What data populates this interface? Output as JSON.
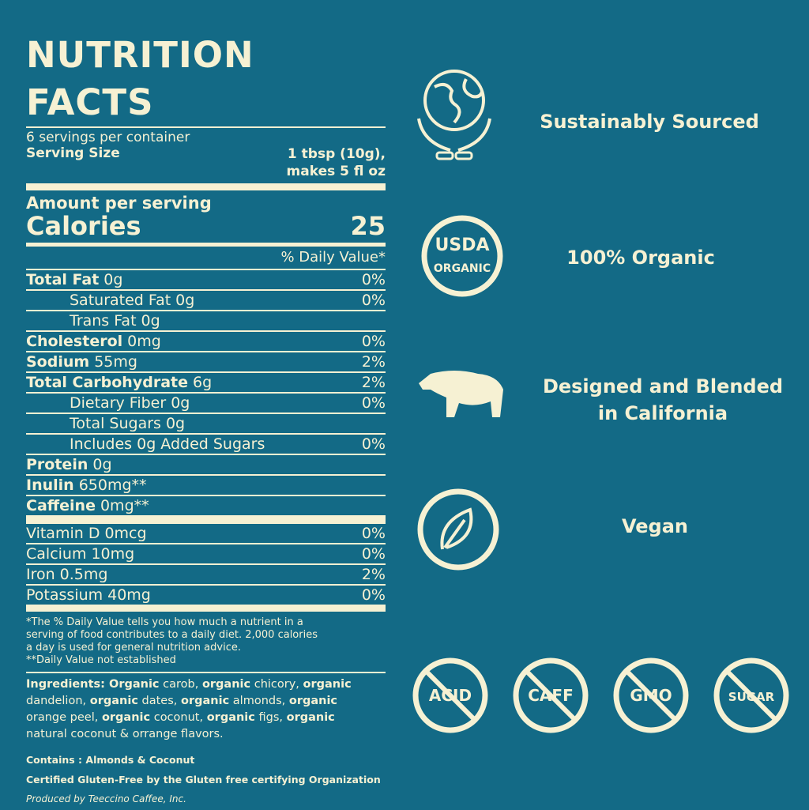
{
  "label": {
    "title": "NUTRITION FACTS",
    "servings": "6 servings per container",
    "serving_size_label": "Serving Size",
    "serving_size_value": [
      "1 tbsp (10g),",
      "makes 5 fl oz"
    ],
    "amount_per_serving": "Amount per serving",
    "calories_label": "Calories",
    "calories_value": "25",
    "dv_header": "% Daily Value*",
    "rows": [
      {
        "label": "Total Fat",
        "amount": "0g",
        "dv": "0%",
        "bold": true,
        "indent": 0
      },
      {
        "label": "Saturated Fat",
        "amount": "0g",
        "dv": "0%",
        "bold": false,
        "indent": 1
      },
      {
        "label": "Trans Fat",
        "amount": "0g",
        "dv": null,
        "bold": false,
        "indent": 1
      },
      {
        "label": "Cholesterol",
        "amount": "0mg",
        "dv": "0%",
        "bold": true,
        "indent": 0
      },
      {
        "label": "Sodium",
        "amount": "55mg",
        "dv": "2%",
        "bold": true,
        "indent": 0
      },
      {
        "label": "Total Carbohydrate",
        "amount": "6g",
        "dv": "2%",
        "bold": true,
        "indent": 0
      },
      {
        "label": "Dietary Fiber",
        "amount": "0g",
        "dv": "0%",
        "bold": false,
        "indent": 1
      },
      {
        "label": "Total Sugars",
        "amount": "0g",
        "dv": null,
        "bold": false,
        "indent": 1
      },
      {
        "label": "Includes 0g Added Sugars",
        "amount": null,
        "dv": "0%",
        "bold": false,
        "indent": 1
      },
      {
        "label": "Protein",
        "amount": "0g",
        "dv": null,
        "bold": true,
        "indent": 0
      },
      {
        "label": "Inulin",
        "amount": "650mg**",
        "dv": null,
        "bold": true,
        "indent": 0
      },
      {
        "label": "Caffeine",
        "amount": "0mg**",
        "dv": null,
        "bold": true,
        "indent": 0
      }
    ],
    "vitamins": [
      {
        "label": "Vitamin D",
        "amount": "0mcg",
        "dv": "0%"
      },
      {
        "label": "Calcium",
        "amount": "10mg",
        "dv": "0%"
      },
      {
        "label": "Iron",
        "amount": "0.5mg",
        "dv": "2%"
      },
      {
        "label": "Potassium",
        "amount": "40mg",
        "dv": "0%"
      }
    ],
    "footnote": [
      "*The % Daily Value tells you how much a nutrient in a",
      "serving of food contributes to a daily diet. 2,000 calories",
      "a day is used for general nutrition advice.",
      "**Daily Value not established"
    ],
    "ingredients": [
      {
        "text": "Ingredients: Organic",
        "bold": true
      },
      {
        "text": " carob, ",
        "bold": false
      },
      {
        "text": "organic",
        "bold": true
      },
      {
        "text": " chicory, ",
        "bold": false
      },
      {
        "text": "organic",
        "bold": true
      },
      {
        "text": " dandelion, ",
        "bold": false
      },
      {
        "text": "organic",
        "bold": true
      },
      {
        "text": " dates, ",
        "bold": false
      },
      {
        "text": "organic",
        "bold": true
      },
      {
        "text": " almonds, ",
        "bold": false
      },
      {
        "text": "organic",
        "bold": true
      },
      {
        "text": " orange peel, ",
        "bold": false
      },
      {
        "text": "organic",
        "bold": true
      },
      {
        "text": " coconut, ",
        "bold": false
      },
      {
        "text": "organic",
        "bold": true
      },
      {
        "text": " figs, ",
        "bold": false
      },
      {
        "text": "organic",
        "bold": true
      },
      {
        "text": " natural coconut & orrange flavors.",
        "bold": false
      }
    ],
    "contains": "Contains : Almonds & Coconut",
    "certified": "Certified Gluten-Free by the Gluten free certifying Organization",
    "produced": "Produced by Teeccino Caffee, Inc."
  },
  "badges": {
    "sustainable": "Sustainably Sourced",
    "organic": "100% Organic",
    "usda_top": "USDA",
    "usda_bottom": "ORGANIC",
    "california": [
      "Designed and Blended",
      "in California"
    ],
    "vegan": "Vegan",
    "free_of": [
      "ACID",
      "CAFF",
      "GMO",
      "SUGAR"
    ]
  }
}
